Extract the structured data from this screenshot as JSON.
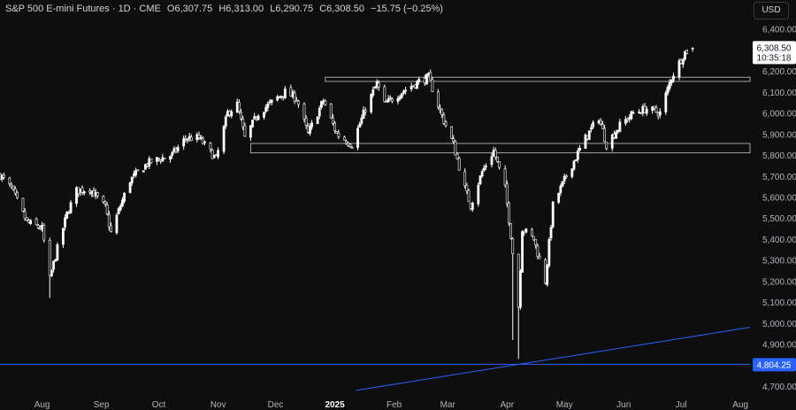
{
  "header": {
    "symbol": "S&P 500 E-mini Futures · 1D · CME",
    "open": "O6,307.75",
    "high": "H6,313.00",
    "low": "L6,290.75",
    "close": "C6,308.50",
    "change": "−15.75 (−0.25%)"
  },
  "currency_button": "USD",
  "price_label": {
    "price": "6,308.50",
    "countdown": "10:35:18"
  },
  "hline_label": "4,804.25",
  "colors": {
    "background": "#0e0e0e",
    "candle": "#ffffff",
    "hline": "#2962ff",
    "trendline": "#2962ff",
    "zone_border": "#c8c8c8",
    "axis_text": "#b2b5be",
    "current_price_bg": "#ffffff"
  },
  "chart_data": {
    "type": "candlestick",
    "y_axis": {
      "ylim": [
        4650,
        6470
      ],
      "ticks": [
        4700,
        4800,
        4900,
        5000,
        5100,
        5200,
        5300,
        5400,
        5500,
        5600,
        5700,
        5800,
        5900,
        6000,
        6100,
        6200,
        6400
      ],
      "tick_labels": [
        "4,700.00",
        "4,800.00",
        "4,900.00",
        "5,000.00",
        "5,100.00",
        "5,200.00",
        "5,300.00",
        "5,400.00",
        "5,500.00",
        "5,600.00",
        "5,700.00",
        "5,800.00",
        "5,900.00",
        "6,000.00",
        "6,100.00",
        "6,200.00",
        "6,400.00"
      ]
    },
    "x_axis": {
      "range": [
        "2024-07-10",
        "2025-08-06"
      ],
      "ticks": [
        {
          "date": "2024-08-01",
          "label": "Aug",
          "bold": false
        },
        {
          "date": "2024-09-01",
          "label": "Sep",
          "bold": false
        },
        {
          "date": "2024-10-01",
          "label": "Oct",
          "bold": false
        },
        {
          "date": "2024-11-01",
          "label": "Nov",
          "bold": false
        },
        {
          "date": "2024-12-01",
          "label": "Dec",
          "bold": false
        },
        {
          "date": "2025-01-01",
          "label": "2025",
          "bold": true
        },
        {
          "date": "2025-02-01",
          "label": "Feb",
          "bold": false
        },
        {
          "date": "2025-03-01",
          "label": "Mar",
          "bold": false
        },
        {
          "date": "2025-04-01",
          "label": "Apr",
          "bold": false
        },
        {
          "date": "2025-05-01",
          "label": "May",
          "bold": false
        },
        {
          "date": "2025-06-01",
          "label": "Jun",
          "bold": false
        },
        {
          "date": "2025-07-01",
          "label": "Jul",
          "bold": false
        },
        {
          "date": "2025-08-01",
          "label": "Aug",
          "bold": false
        }
      ]
    },
    "series_close_approx": [
      [
        "2024-07-10",
        5705
      ],
      [
        "2024-07-16",
        5640
      ],
      [
        "2024-07-24",
        5480
      ],
      [
        "2024-08-01",
        5450
      ],
      [
        "2024-08-05",
        5210
      ],
      [
        "2024-08-08",
        5320
      ],
      [
        "2024-08-14",
        5520
      ],
      [
        "2024-08-19",
        5630
      ],
      [
        "2024-08-26",
        5640
      ],
      [
        "2024-09-03",
        5550
      ],
      [
        "2024-09-06",
        5430
      ],
      [
        "2024-09-11",
        5560
      ],
      [
        "2024-09-16",
        5680
      ],
      [
        "2024-09-25",
        5760
      ],
      [
        "2024-10-01",
        5780
      ],
      [
        "2024-10-08",
        5800
      ],
      [
        "2024-10-15",
        5880
      ],
      [
        "2024-10-22",
        5880
      ],
      [
        "2024-10-31",
        5780
      ],
      [
        "2024-11-06",
        6000
      ],
      [
        "2024-11-11",
        6040
      ],
      [
        "2024-11-15",
        5880
      ],
      [
        "2024-11-22",
        6000
      ],
      [
        "2024-11-29",
        6050
      ],
      [
        "2024-12-06",
        6100
      ],
      [
        "2024-12-12",
        6070
      ],
      [
        "2024-12-18",
        5900
      ],
      [
        "2024-12-26",
        6060
      ],
      [
        "2025-01-02",
        5900
      ],
      [
        "2025-01-10",
        5850
      ],
      [
        "2025-01-17",
        6020
      ],
      [
        "2025-01-23",
        6140
      ],
      [
        "2025-01-27",
        6040
      ],
      [
        "2025-02-05",
        6100
      ],
      [
        "2025-02-14",
        6150
      ],
      [
        "2025-02-19",
        6170
      ],
      [
        "2025-02-25",
        6010
      ],
      [
        "2025-03-04",
        5850
      ],
      [
        "2025-03-10",
        5640
      ],
      [
        "2025-03-13",
        5560
      ],
      [
        "2025-03-19",
        5720
      ],
      [
        "2025-03-25",
        5820
      ],
      [
        "2025-03-31",
        5640
      ],
      [
        "2025-04-03",
        5420
      ],
      [
        "2025-04-07",
        5080
      ],
      [
        "2025-04-09",
        5450
      ],
      [
        "2025-04-15",
        5400
      ],
      [
        "2025-04-21",
        5200
      ],
      [
        "2025-04-25",
        5560
      ],
      [
        "2025-05-02",
        5700
      ],
      [
        "2025-05-12",
        5880
      ],
      [
        "2025-05-19",
        5980
      ],
      [
        "2025-05-23",
        5850
      ],
      [
        "2025-05-30",
        5940
      ],
      [
        "2025-06-06",
        6000
      ],
      [
        "2025-06-13",
        6020
      ],
      [
        "2025-06-20",
        6000
      ],
      [
        "2025-06-26",
        6170
      ],
      [
        "2025-07-03",
        6290
      ],
      [
        "2025-07-07",
        6308.5
      ]
    ],
    "annotations": {
      "resistance_zone": [
        6150,
        6170
      ],
      "support_zone": [
        5810,
        5855
      ],
      "horizontal_line": 4804.25,
      "trendline_points": [
        [
          "2025-01-12",
          4680
        ],
        [
          "2025-08-06",
          4980
        ]
      ]
    }
  }
}
